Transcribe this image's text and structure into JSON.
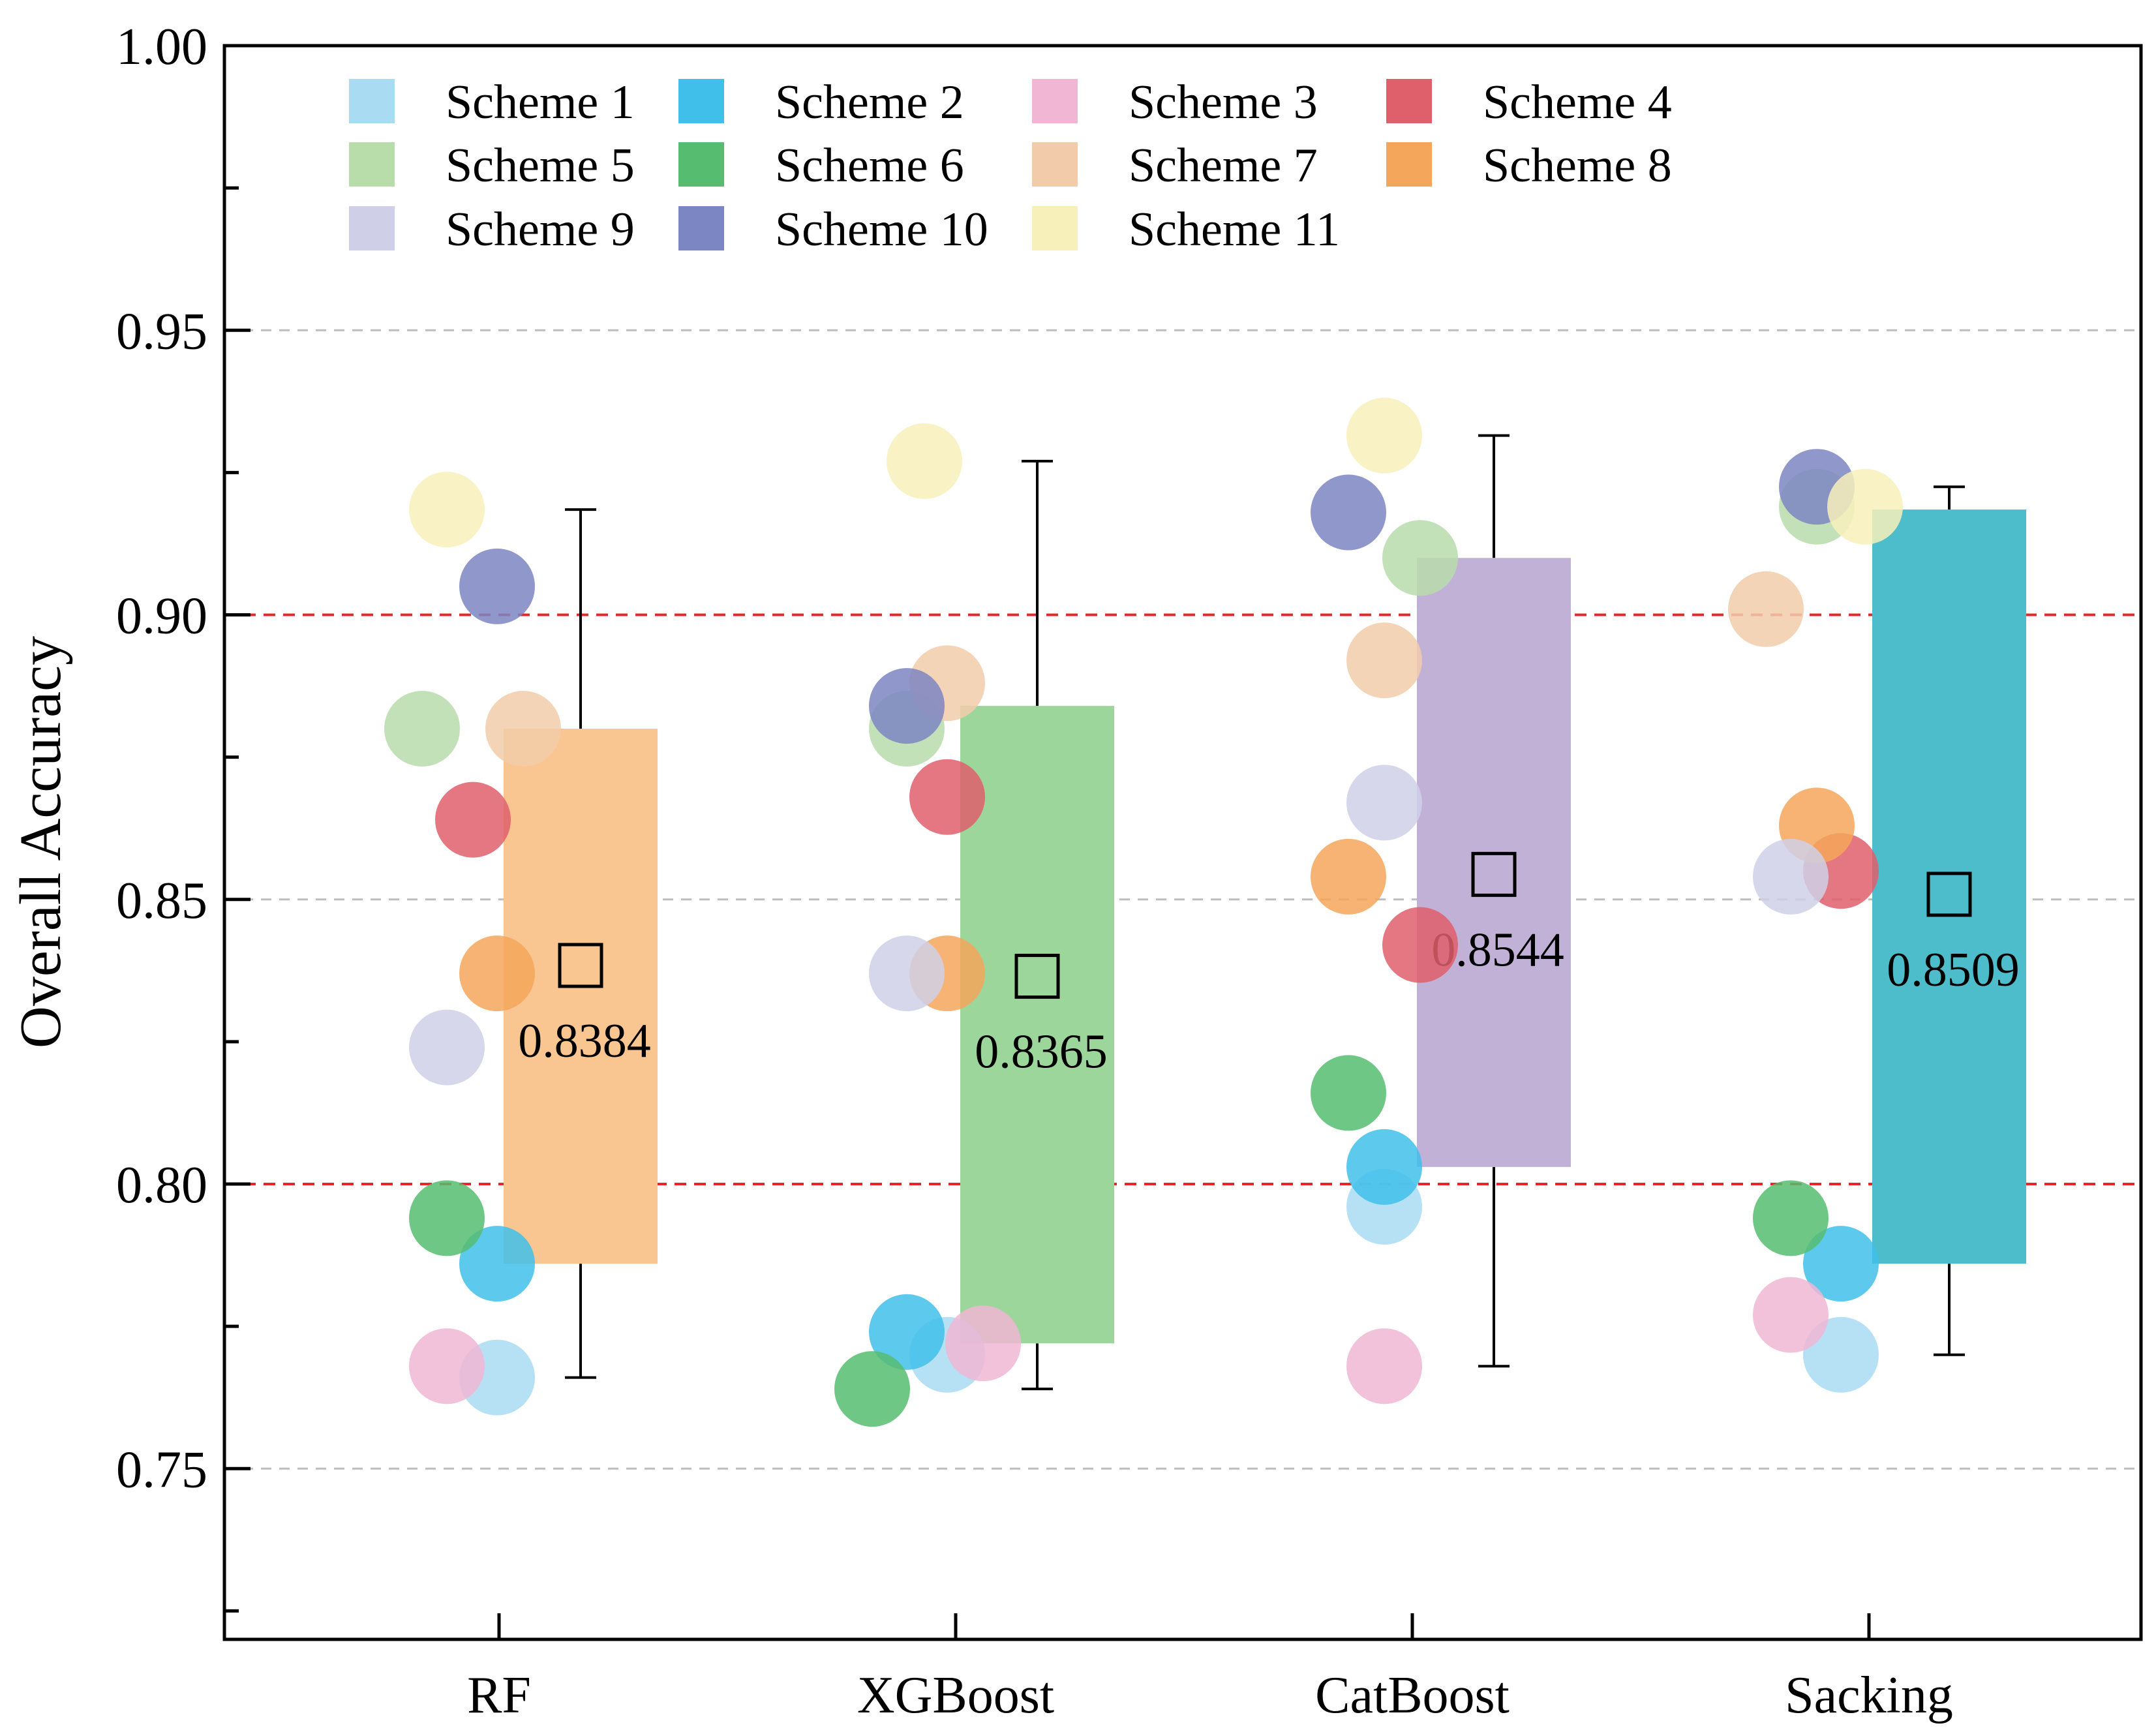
{
  "chart_data": {
    "type": "box",
    "title": "",
    "xlabel": "",
    "ylabel": "Overall Accuracy",
    "ylim": [
      0.72,
      1.0
    ],
    "yticks": [
      "0.75",
      "0.80",
      "0.85",
      "0.90",
      "0.95",
      "1.00"
    ],
    "yticks_values": [
      0.75,
      0.8,
      0.85,
      0.9,
      0.95,
      1.0
    ],
    "reference_lines": [
      {
        "value": 0.9,
        "style": "dashed",
        "color": "#e8262a"
      },
      {
        "value": 0.8,
        "style": "dashed",
        "color": "#e8262a"
      }
    ],
    "grid_lines": [
      0.75,
      0.85,
      0.95
    ],
    "legend_position": "top-left",
    "schemes": [
      {
        "name": "Scheme 1",
        "color": "#a9dcf3"
      },
      {
        "name": "Scheme 2",
        "color": "#3fbfea"
      },
      {
        "name": "Scheme 3",
        "color": "#f0b6d4"
      },
      {
        "name": "Scheme 4",
        "color": "#df5f6b"
      },
      {
        "name": "Scheme 5",
        "color": "#b9dcab"
      },
      {
        "name": "Scheme 6",
        "color": "#56bd70"
      },
      {
        "name": "Scheme 7",
        "color": "#f2ccaa"
      },
      {
        "name": "Scheme 8",
        "color": "#f4a65b"
      },
      {
        "name": "Scheme 9",
        "color": "#cfd0e7"
      },
      {
        "name": "Scheme 10",
        "color": "#7c86c2"
      },
      {
        "name": "Scheme 11",
        "color": "#f8f0ba"
      }
    ],
    "models": [
      {
        "name": "RF",
        "box_color": "#f9c590",
        "mean": 0.8384,
        "mean_label": "0.8384",
        "q1": 0.786,
        "q3": 0.88,
        "whisker_low": 0.766,
        "whisker_high": 0.9185,
        "points": [
          0.766,
          0.786,
          0.768,
          0.864,
          0.88,
          0.794,
          0.88,
          0.837,
          0.824,
          0.905,
          0.9185
        ]
      },
      {
        "name": "XGBoost",
        "box_color": "#9dd69b",
        "mean": 0.8365,
        "mean_label": "0.8365",
        "q1": 0.772,
        "q3": 0.884,
        "whisker_low": 0.764,
        "whisker_high": 0.927,
        "points": [
          0.77,
          0.774,
          0.772,
          0.868,
          0.88,
          0.764,
          0.888,
          0.837,
          0.837,
          0.884,
          0.927
        ]
      },
      {
        "name": "CatBoost",
        "box_color": "#c2b1d7",
        "mean": 0.8544,
        "mean_label": "0.8544",
        "q1": 0.803,
        "q3": 0.91,
        "whisker_low": 0.768,
        "whisker_high": 0.9315,
        "points": [
          0.796,
          0.803,
          0.768,
          0.842,
          0.91,
          0.816,
          0.892,
          0.854,
          0.867,
          0.918,
          0.9315
        ]
      },
      {
        "name": "Sacking",
        "box_color": "#4dbdcc",
        "mean": 0.8509,
        "mean_label": "0.8509",
        "q1": 0.786,
        "q3": 0.9185,
        "whisker_low": 0.77,
        "whisker_high": 0.9225,
        "points": [
          0.77,
          0.786,
          0.777,
          0.855,
          0.919,
          0.794,
          0.901,
          0.863,
          0.854,
          0.9225,
          0.919
        ]
      }
    ]
  }
}
